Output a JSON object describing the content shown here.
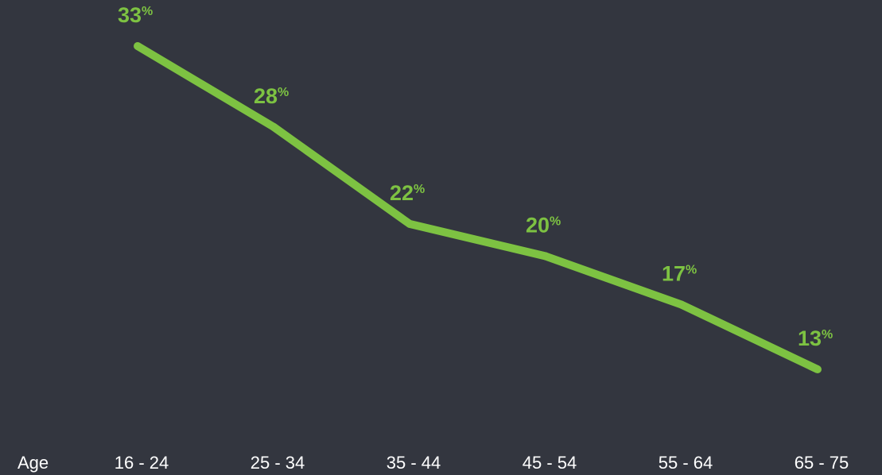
{
  "colors": {
    "background": "#33363f",
    "line": "#7dc242",
    "axis_text": "#ffffff"
  },
  "chart_data": {
    "type": "line",
    "title": "",
    "xlabel": "Age",
    "ylabel": "",
    "categories": [
      "16 - 24",
      "25 - 34",
      "35 - 44",
      "45 - 54",
      "55 - 64",
      "65 - 75"
    ],
    "series": [
      {
        "values": [
          33,
          28,
          22,
          20,
          17,
          13
        ],
        "labels": [
          "33",
          "28",
          "22",
          "20",
          "17",
          "13"
        ],
        "unit": "%"
      }
    ],
    "ylim": [
      0,
      35
    ],
    "grid": false,
    "legend": "none"
  }
}
